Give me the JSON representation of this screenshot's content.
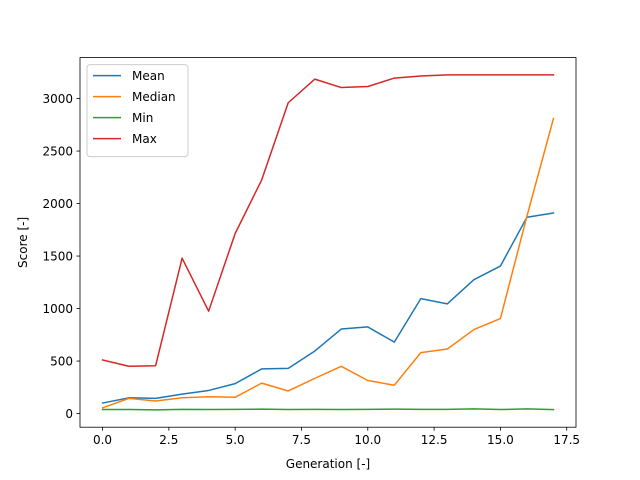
{
  "chart_data": {
    "type": "line",
    "title": "",
    "xlabel": "Generation [-]",
    "ylabel": "Score [-]",
    "xlim": [
      -0.85,
      17.85
    ],
    "ylim": [
      -130,
      3390
    ],
    "xticks": [
      0.0,
      2.5,
      5.0,
      7.5,
      10.0,
      12.5,
      15.0,
      17.5
    ],
    "xtick_labels": [
      "0.0",
      "2.5",
      "5.0",
      "7.5",
      "10.0",
      "12.5",
      "15.0",
      "17.5"
    ],
    "yticks": [
      0,
      500,
      1000,
      1500,
      2000,
      2500,
      3000
    ],
    "ytick_labels": [
      "0",
      "500",
      "1000",
      "1500",
      "2000",
      "2500",
      "3000"
    ],
    "grid": false,
    "legend_position": "top-left",
    "x": [
      0,
      1,
      2,
      3,
      4,
      5,
      6,
      7,
      8,
      9,
      10,
      11,
      12,
      13,
      14,
      15,
      16,
      17
    ],
    "series": [
      {
        "name": "Mean",
        "color": "#1f77b4",
        "values": [
          100,
          150,
          145,
          185,
          220,
          285,
          425,
          430,
          595,
          805,
          825,
          680,
          1095,
          1045,
          1275,
          1405,
          1870,
          1910
        ]
      },
      {
        "name": "Median",
        "color": "#ff7f0e",
        "values": [
          55,
          145,
          120,
          150,
          160,
          155,
          290,
          215,
          335,
          450,
          315,
          270,
          580,
          615,
          800,
          905,
          1880,
          2810
        ]
      },
      {
        "name": "Min",
        "color": "#2ca02c",
        "values": [
          38,
          38,
          35,
          40,
          38,
          40,
          42,
          38,
          40,
          38,
          40,
          42,
          40,
          40,
          45,
          38,
          45,
          38
        ]
      },
      {
        "name": "Max",
        "color": "#d62728",
        "values": [
          510,
          450,
          455,
          1480,
          975,
          1715,
          2225,
          2960,
          3185,
          3105,
          3115,
          3195,
          3215,
          3225,
          3225,
          3225,
          3225,
          3225
        ]
      }
    ]
  }
}
